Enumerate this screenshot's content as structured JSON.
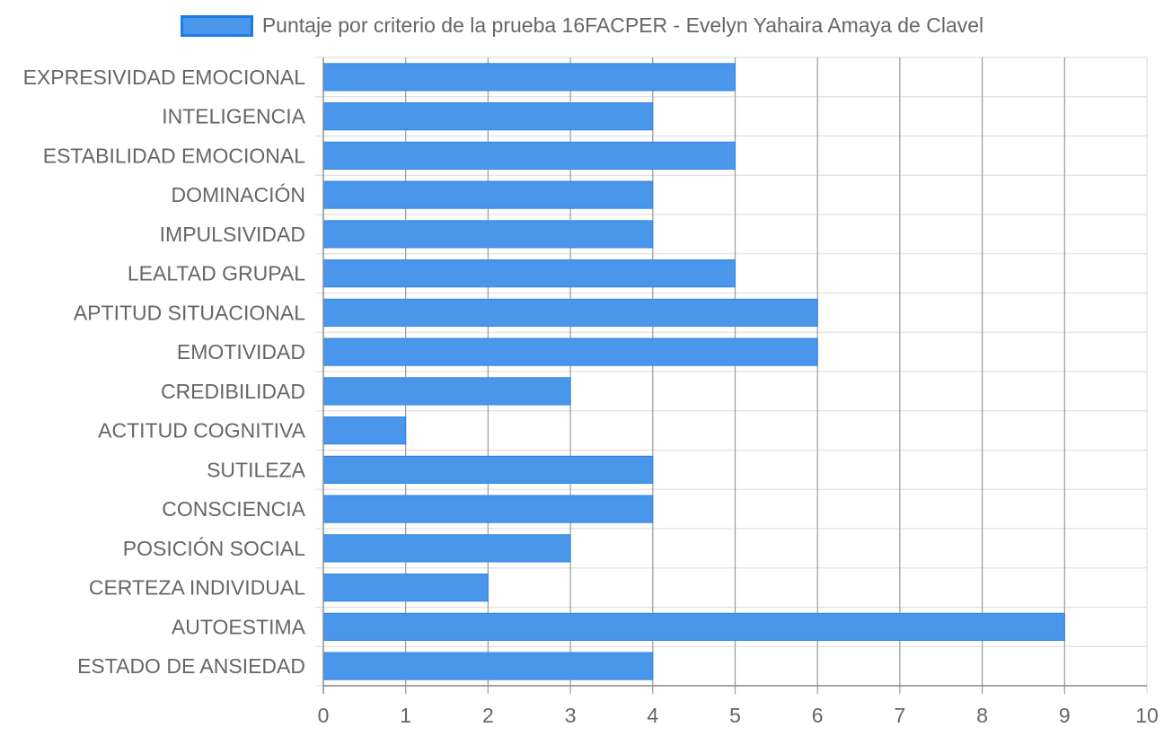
{
  "chart_data": {
    "type": "bar",
    "orientation": "horizontal",
    "legend": {
      "label": "Puntaje por criterio de la prueba 16FACPER - Evelyn Yahaira Amaya de Clavel",
      "position": "top-center"
    },
    "colors": {
      "bar_fill": "#4a96ea",
      "bar_border": "#2f86e4",
      "legend_border": "#1e7be0",
      "grid_line": "#e0e0e0",
      "grid_line_major": "#9a9a9a",
      "axis_line": "#888888",
      "label_text": "#666666"
    },
    "categories": [
      "EXPRESIVIDAD EMOCIONAL",
      "INTELIGENCIA",
      "ESTABILIDAD EMOCIONAL",
      "DOMINACIÓN",
      "IMPULSIVIDAD",
      "LEALTAD GRUPAL",
      "APTITUD SITUACIONAL",
      "EMOTIVIDAD",
      "CREDIBILIDAD",
      "ACTITUD COGNITIVA",
      "SUTILEZA",
      "CONSCIENCIA",
      "POSICIÓN SOCIAL",
      "CERTEZA INDIVIDUAL",
      "AUTOESTIMA",
      "ESTADO DE ANSIEDAD"
    ],
    "series": [
      {
        "name": "Puntaje por criterio de la prueba 16FACPER - Evelyn Yahaira Amaya de Clavel",
        "values": [
          5,
          4,
          5,
          4,
          4,
          5,
          6,
          6,
          3,
          1,
          4,
          4,
          3,
          2,
          9,
          4
        ]
      }
    ],
    "x_ticks": [
      "0",
      "1",
      "2",
      "3",
      "4",
      "5",
      "6",
      "7",
      "8",
      "9",
      "10"
    ],
    "xlim": [
      0,
      10
    ],
    "grid": true
  }
}
